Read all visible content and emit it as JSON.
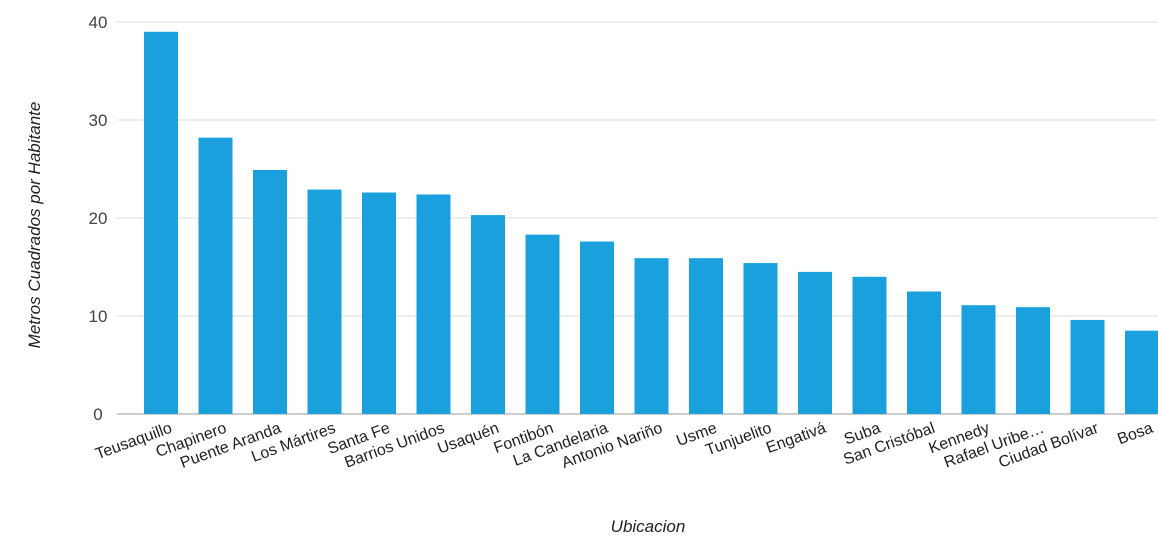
{
  "chart_data": {
    "type": "bar",
    "title": "",
    "xlabel": "Ubicacion",
    "ylabel": "Metros Cuadrados por Habitante",
    "ylim": [
      0,
      40
    ],
    "yticks": [
      0,
      10,
      20,
      30,
      40
    ],
    "grid": true,
    "legend": "none",
    "bar_color": "#1aa0dc",
    "categories": [
      "Teusaquillo",
      "Chapinero",
      "Puente Aranda",
      "Los Mártires",
      "Santa Fe",
      "Barrios Unidos",
      "Usaquén",
      "Fontibón",
      "La Candelaria",
      "Antonio Nariño",
      "Usme",
      "Tunjuelito",
      "Engativá",
      "Suba",
      "San Cristóbal",
      "Kennedy",
      "Rafael Uribe…",
      "Ciudad Bolívar",
      "Bosa"
    ],
    "values": [
      39.0,
      28.2,
      24.9,
      22.9,
      22.6,
      22.4,
      20.3,
      18.3,
      17.6,
      15.9,
      15.9,
      15.4,
      14.5,
      14.0,
      12.5,
      11.1,
      10.9,
      9.6,
      8.5
    ]
  }
}
